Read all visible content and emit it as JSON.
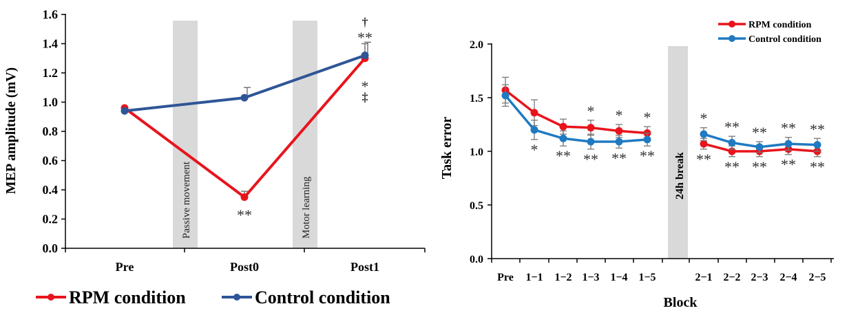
{
  "colors": {
    "rpm": "#e8141c",
    "control": "#2f5597",
    "control_right": "#1f7ac2",
    "band": "#d9d9d9",
    "error_bar": "#777777"
  },
  "chart_data": [
    {
      "type": "line",
      "categories": [
        "Pre",
        "Post0",
        "Post1"
      ],
      "ylabel": "MEP amplitude (mV)",
      "ylim": [
        0,
        1.6
      ],
      "yticks": [
        "0.0",
        "0.2",
        "0.4",
        "0.6",
        "0.8",
        "1.0",
        "1.2",
        "1.4",
        "1.6"
      ],
      "grid": false,
      "legend": "bottom",
      "series": [
        {
          "name": "RPM condition",
          "values": [
            0.96,
            0.35,
            1.3
          ],
          "errors": [
            0.0,
            0.04,
            0.1
          ]
        },
        {
          "name": "Control condition",
          "values": [
            0.94,
            1.03,
            1.32
          ],
          "errors": [
            0.0,
            0.07,
            0.09
          ]
        }
      ],
      "bands": [
        {
          "label": "Passive movement"
        },
        {
          "label": "Motor learning"
        }
      ],
      "annotations": [
        {
          "category": "Post0",
          "series": "RPM condition",
          "text": "**"
        },
        {
          "category": "Post1",
          "series": "Control condition",
          "text": "**"
        },
        {
          "category": "Post1",
          "series": "Control condition",
          "text": "†"
        },
        {
          "category": "Post1",
          "series": "RPM condition",
          "text": "*"
        },
        {
          "category": "Post1",
          "series": "RPM condition",
          "text": "‡"
        }
      ]
    },
    {
      "type": "line",
      "categories": [
        "Pre",
        "1−1",
        "1−2",
        "1−3",
        "1−4",
        "1−5",
        "2−1",
        "2−2",
        "2−3",
        "2−4",
        "2−5"
      ],
      "xlabel": "Block",
      "ylabel": "Task error",
      "ylim": [
        0,
        2.0
      ],
      "yticks": [
        "0.0",
        "0.5",
        "1.0",
        "1.5",
        "2.0"
      ],
      "grid": false,
      "legend": "top-right",
      "series": [
        {
          "name": "RPM condition",
          "values": [
            1.57,
            1.36,
            1.23,
            1.22,
            1.19,
            1.17,
            1.07,
            1.0,
            1.0,
            1.02,
            1.0
          ],
          "errors": [
            0.12,
            0.12,
            0.07,
            0.07,
            0.06,
            0.06,
            0.05,
            0.05,
            0.05,
            0.05,
            0.05
          ]
        },
        {
          "name": "Control condition",
          "values": [
            1.52,
            1.2,
            1.12,
            1.09,
            1.09,
            1.11,
            1.16,
            1.08,
            1.04,
            1.07,
            1.06
          ],
          "errors": [
            0.1,
            0.09,
            0.07,
            0.07,
            0.06,
            0.06,
            0.06,
            0.06,
            0.05,
            0.06,
            0.06
          ]
        }
      ],
      "break_label": "24h break",
      "annotations_above": [
        "",
        "",
        "",
        "*",
        "*",
        "*",
        "*",
        "**",
        "**",
        "**",
        "**"
      ],
      "annotations_below": [
        "",
        "*",
        "**",
        "**",
        "**",
        "**",
        "**",
        "**",
        "**",
        "**",
        "**"
      ]
    }
  ]
}
